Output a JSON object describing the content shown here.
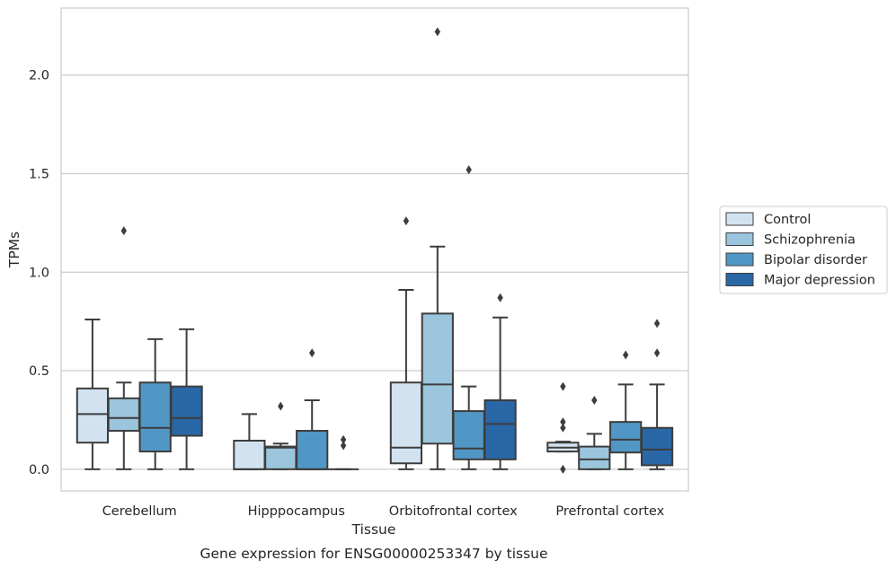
{
  "caption": "Gene expression for ENSG00000253347 by tissue",
  "chart_data": {
    "type": "box",
    "title": "",
    "xlabel": "Tissue",
    "ylabel": "TPMs",
    "ylim": [
      -0.11,
      2.34
    ],
    "yticks": [
      0.0,
      0.5,
      1.0,
      1.5,
      2.0
    ],
    "ytick_labels": [
      "0.0",
      "0.5",
      "1.0",
      "1.5",
      "2.0"
    ],
    "grid": "horizontal",
    "legend_position": "right",
    "categories": [
      "Cerebellum",
      "Hipppocampus",
      "Orbitofrontal cortex",
      "Prefrontal cortex"
    ],
    "series": [
      {
        "name": "Control",
        "color": "#d2e2f1",
        "boxes": [
          {
            "whisker_low": 0.0,
            "q1": 0.135,
            "median": 0.28,
            "q3": 0.41,
            "whisker_high": 0.76,
            "outliers": []
          },
          {
            "whisker_low": 0.0,
            "q1": 0.0,
            "median": 0.0,
            "q3": 0.145,
            "whisker_high": 0.28,
            "outliers": []
          },
          {
            "whisker_low": 0.0,
            "q1": 0.03,
            "median": 0.11,
            "q3": 0.44,
            "whisker_high": 0.91,
            "outliers": [
              1.26
            ]
          },
          {
            "whisker_low": 0.09,
            "q1": 0.09,
            "median": 0.11,
            "q3": 0.135,
            "whisker_high": 0.14,
            "outliers": [
              0.42,
              0.24,
              0.21,
              0.0
            ]
          }
        ]
      },
      {
        "name": "Schizophrenia",
        "color": "#9bc5dd",
        "boxes": [
          {
            "whisker_low": 0.0,
            "q1": 0.195,
            "median": 0.26,
            "q3": 0.36,
            "whisker_high": 0.44,
            "outliers": [
              1.21
            ]
          },
          {
            "whisker_low": 0.0,
            "q1": 0.0,
            "median": 0.11,
            "q3": 0.115,
            "whisker_high": 0.13,
            "outliers": [
              0.32
            ]
          },
          {
            "whisker_low": 0.0,
            "q1": 0.13,
            "median": 0.43,
            "q3": 0.79,
            "whisker_high": 1.13,
            "outliers": [
              2.22
            ]
          },
          {
            "whisker_low": 0.0,
            "q1": 0.0,
            "median": 0.05,
            "q3": 0.115,
            "whisker_high": 0.18,
            "outliers": [
              0.35
            ]
          }
        ]
      },
      {
        "name": "Bipolar disorder",
        "color": "#5197c5",
        "boxes": [
          {
            "whisker_low": 0.0,
            "q1": 0.09,
            "median": 0.21,
            "q3": 0.44,
            "whisker_high": 0.66,
            "outliers": []
          },
          {
            "whisker_low": 0.0,
            "q1": 0.0,
            "median": 0.0,
            "q3": 0.195,
            "whisker_high": 0.35,
            "outliers": [
              0.59
            ]
          },
          {
            "whisker_low": 0.0,
            "q1": 0.05,
            "median": 0.105,
            "q3": 0.295,
            "whisker_high": 0.42,
            "outliers": [
              1.52
            ]
          },
          {
            "whisker_low": 0.0,
            "q1": 0.085,
            "median": 0.15,
            "q3": 0.24,
            "whisker_high": 0.43,
            "outliers": [
              0.58
            ]
          }
        ]
      },
      {
        "name": "Major depression",
        "color": "#2967a6",
        "boxes": [
          {
            "whisker_low": 0.0,
            "q1": 0.17,
            "median": 0.26,
            "q3": 0.42,
            "whisker_high": 0.71,
            "outliers": []
          },
          {
            "whisker_low": 0.0,
            "q1": 0.0,
            "median": 0.0,
            "q3": 0.0,
            "whisker_high": 0.0,
            "outliers": [
              0.15,
              0.12
            ]
          },
          {
            "whisker_low": 0.0,
            "q1": 0.05,
            "median": 0.23,
            "q3": 0.35,
            "whisker_high": 0.77,
            "outliers": [
              0.87
            ]
          },
          {
            "whisker_low": 0.0,
            "q1": 0.02,
            "median": 0.1,
            "q3": 0.21,
            "whisker_high": 0.43,
            "outliers": [
              0.74,
              0.59
            ]
          }
        ]
      }
    ]
  }
}
